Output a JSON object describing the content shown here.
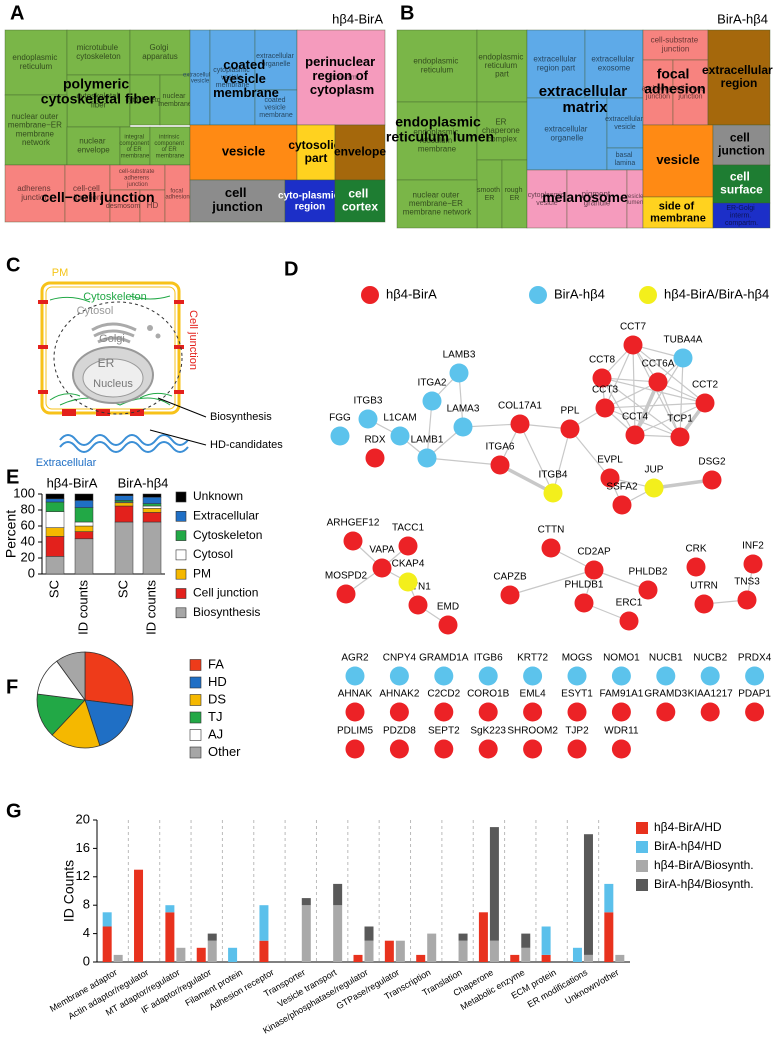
{
  "chart_data": [
    {
      "type": "treemap",
      "panel": "A",
      "title": "hβ4-BirA",
      "tiles": [
        {
          "label": "endoplasmic reticulum",
          "color": "#7ab648"
        },
        {
          "label": "microtubule cytoskeleton",
          "color": "#7ab648"
        },
        {
          "label": "Golgi apparatus",
          "color": "#7ab648"
        },
        {
          "label": "cytoskeletal fiber",
          "color": "#7ab648"
        },
        {
          "label": "cytoskeleton",
          "color": "#7ab648"
        },
        {
          "label": "nuclear membrane",
          "color": "#7ab648"
        },
        {
          "label": "nuclear outer membrane−ER membrane network",
          "color": "#7ab648"
        },
        {
          "label": "nuclear envelope",
          "color": "#7ab648"
        },
        {
          "label": "integral component of ER membrane",
          "color": "#7ab648"
        },
        {
          "label": "intrinsic component of ER membrane",
          "color": "#7ab648"
        },
        {
          "label": "adherens junction",
          "color": "#f7837f"
        },
        {
          "label": "cell-cell junction",
          "color": "#f7837f"
        },
        {
          "label": "cell-substrate adherens junction",
          "color": "#f7837f"
        },
        {
          "label": "desmosome",
          "color": "#f7837f"
        },
        {
          "label": "HD",
          "color": "#f7837f"
        },
        {
          "label": "focal adhesion",
          "color": "#f7837f"
        },
        {
          "label": "extracellular vesicle",
          "color": "#5eaae8"
        },
        {
          "label": "cytoplasmic vesicle membrane",
          "color": "#5eaae8"
        },
        {
          "label": "extracellular organelle",
          "color": "#5eaae8"
        },
        {
          "label": "coated vesicle membrane",
          "color": "#5eaae8"
        },
        {
          "label": "cytoplasm",
          "color": "#f59bbd"
        },
        {
          "label": "vesicle",
          "color": "#ff8a14"
        },
        {
          "label": "cytosolic part",
          "color": "#ffd21f"
        },
        {
          "label": "envelope",
          "color": "#a5680c"
        },
        {
          "label": "cell junction",
          "color": "#8c8c8c"
        },
        {
          "label": "cyto-plasmic region",
          "color": "#1c2fc8"
        },
        {
          "label": "cell cortex",
          "color": "#1e7d32"
        }
      ],
      "group_labels": [
        "polymeric cytoskeletal fiber",
        "coated vesicle membrane",
        "perinuclear region of cytoplasm",
        "cell−cell junction"
      ]
    },
    {
      "type": "treemap",
      "panel": "B",
      "title": "BirA-hβ4",
      "tiles": [
        {
          "label": "endoplasmic reticulum",
          "color": "#7ab648"
        },
        {
          "label": "endoplasmic reticulum part",
          "color": "#7ab648"
        },
        {
          "label": "endoplasmic reticulum membrane",
          "color": "#7ab648"
        },
        {
          "label": "ER chaperone complex",
          "color": "#7ab648"
        },
        {
          "label": "smooth ER",
          "color": "#7ab648"
        },
        {
          "label": "rough ER",
          "color": "#7ab648"
        },
        {
          "label": "nuclear outer membrane−ER membrane network",
          "color": "#7ab648"
        },
        {
          "label": "extracellular region part",
          "color": "#5eaae8"
        },
        {
          "label": "extracellular exosome",
          "color": "#5eaae8"
        },
        {
          "label": "extracellular organelle",
          "color": "#5eaae8"
        },
        {
          "label": "extracellular vesicle",
          "color": "#5eaae8"
        },
        {
          "label": "basal lamina",
          "color": "#5eaae8"
        },
        {
          "label": "cytoplasmic vesicle",
          "color": "#f59bbd"
        },
        {
          "label": "pigment granule",
          "color": "#f59bbd"
        },
        {
          "label": "vesicle lumen",
          "color": "#f59bbd"
        },
        {
          "label": "cell-substrate junction",
          "color": "#f7837f"
        },
        {
          "label": "anchoring junction",
          "color": "#f7837f"
        },
        {
          "label": "adherens junction",
          "color": "#f7837f"
        },
        {
          "label": "extracellular region",
          "color": "#a5680c"
        },
        {
          "label": "vesicle",
          "color": "#ff8a14"
        },
        {
          "label": "side of membrane",
          "color": "#ffd21f"
        },
        {
          "label": "cell junction",
          "color": "#8c8c8c"
        },
        {
          "label": "cell surface",
          "color": "#1e7d32"
        },
        {
          "label": "ER-Golgi interm. compartm.",
          "color": "#1c2fc8"
        }
      ],
      "group_labels": [
        "endoplasmic reticulum lumen",
        "extracellular matrix",
        "melanosome",
        "focal adhesion"
      ]
    },
    {
      "type": "diagram",
      "panel": "C",
      "labels": [
        "PM",
        "Cytoskeleton",
        "Cytosol",
        "Golgi",
        "ER",
        "Nucleus",
        "Cell junction",
        "Biosynthesis",
        "HD-candidates",
        "Extracellular"
      ]
    },
    {
      "type": "network",
      "panel": "D",
      "series": [
        {
          "name": "hβ4-BirA",
          "color": "#ec2226",
          "nodes": [
            "CCT7",
            "CCT8",
            "CCT6A",
            "CCT2",
            "CCT3",
            "CCT4",
            "TCP1",
            "COL17A1",
            "PPL",
            "RDX",
            "ITGA6",
            "EVPL",
            "DSG2",
            "SSFA2",
            "ARHGEF12",
            "TACC1",
            "VAPA",
            "MOSPD2",
            "KTN1",
            "EMD",
            "CTTN",
            "CD2AP",
            "PHLDB2",
            "CAPZB",
            "PHLDB1",
            "ERC1",
            "CRK",
            "INF2",
            "UTRN",
            "TNS3",
            "AHNAK",
            "AHNAK2",
            "C2CD2",
            "CORO1B",
            "EML4",
            "ESYT1",
            "FAM91A1",
            "GRAMD3",
            "KIAA1217",
            "PDAP1",
            "PDLIM5",
            "PDZD8",
            "SEPT2",
            "SgK223",
            "SHROOM2",
            "TJP2",
            "WDR11"
          ]
        },
        {
          "name": "BirA-hβ4",
          "color": "#5cc3ec",
          "nodes": [
            "TUBA4A",
            "LAMB3",
            "ITGA2",
            "ITGB3",
            "FGG",
            "L1CAM",
            "LAMA3",
            "LAMB1",
            "AGR2",
            "CNPY4",
            "GRAMD1A",
            "ITGB6",
            "KRT72",
            "MOGS",
            "NOMO1",
            "NUCB1",
            "NUCB2",
            "PRDX4"
          ]
        },
        {
          "name": "hβ4-BirA/BirA-hβ4",
          "color": "#f3ef1c",
          "nodes": [
            "ITGB4",
            "JUP",
            "CKAP4"
          ]
        }
      ]
    },
    {
      "type": "bar",
      "stacked": true,
      "panel": "E",
      "groups": [
        "hβ4-BirA",
        "BirA-hβ4"
      ],
      "categories": [
        "SC",
        "ID counts",
        "SC",
        "ID counts"
      ],
      "ylabel": "Percent",
      "ylim": [
        0,
        100
      ],
      "yticks": [
        0,
        20,
        40,
        60,
        80,
        100
      ],
      "series": [
        {
          "name": "Unknown",
          "color": "#000000",
          "values": [
            6,
            8,
            2,
            4
          ]
        },
        {
          "name": "Extracellular",
          "color": "#1f6fc5",
          "values": [
            4,
            9,
            6,
            8
          ]
        },
        {
          "name": "Cytoskeleton",
          "color": "#22a846",
          "values": [
            12,
            18,
            2,
            3
          ]
        },
        {
          "name": "Cytosol",
          "color": "#ffffff",
          "values": [
            20,
            5,
            1,
            3
          ]
        },
        {
          "name": "PM",
          "color": "#f5b800",
          "values": [
            11,
            7,
            4,
            5
          ]
        },
        {
          "name": "Cell junction",
          "color": "#e3211c",
          "values": [
            25,
            9,
            20,
            12
          ]
        },
        {
          "name": "Biosynthesis",
          "color": "#a6a6a6",
          "values": [
            22,
            44,
            65,
            65
          ]
        }
      ]
    },
    {
      "type": "pie",
      "panel": "F",
      "categories": [
        "FA",
        "HD",
        "DS",
        "TJ",
        "AJ",
        "Other"
      ],
      "values": [
        27,
        18,
        17,
        15,
        13,
        10
      ],
      "colors": [
        "#ee3b1a",
        "#1f6fc5",
        "#f5b800",
        "#22a846",
        "#ffffff",
        "#a6a6a6"
      ]
    },
    {
      "type": "bar",
      "stacked": true,
      "panel": "G",
      "ylabel": "ID Counts",
      "ylim": [
        0,
        20
      ],
      "yticks": [
        0,
        4,
        8,
        12,
        16,
        20
      ],
      "categories": [
        "Membrane adaptor",
        "Actin adaptor/regulator",
        "MT adaptor/regulator",
        "IF adaptor/regulator",
        "Filament protein",
        "Adhesion receptor",
        "Transporter",
        "Vesicle transport",
        "Kinase/phosphatase/regulator",
        "GTPase/regulator",
        "Transcription",
        "Translation",
        "Chaperone",
        "Metabolic enzyme",
        "ECM protein",
        "ER modifications",
        "Unknown/other"
      ],
      "series": [
        {
          "name": "hβ4-BirA/HD",
          "color": "#e8321e",
          "stack": 0,
          "values": [
            5,
            13,
            7,
            2,
            0,
            3,
            0,
            0,
            1,
            3,
            1,
            0,
            7,
            1,
            1,
            0,
            7
          ]
        },
        {
          "name": "BirA-hβ4/HD",
          "color": "#5bc0eb",
          "stack": 0,
          "values": [
            2,
            0,
            1,
            0,
            2,
            5,
            0,
            0,
            0,
            0,
            0,
            0,
            0,
            0,
            4,
            2,
            4
          ]
        },
        {
          "name": "hβ4-BirA/Biosynth.",
          "color": "#a9a9a9",
          "stack": 1,
          "values": [
            1,
            0,
            2,
            3,
            0,
            0,
            8,
            8,
            3,
            3,
            4,
            3,
            3,
            2,
            0,
            1,
            1
          ]
        },
        {
          "name": "BirA-hβ4/Biosynth.",
          "color": "#595959",
          "stack": 1,
          "values": [
            0,
            0,
            0,
            1,
            0,
            0,
            1,
            3,
            2,
            0,
            0,
            1,
            16,
            2,
            0,
            17,
            0
          ]
        }
      ]
    }
  ]
}
